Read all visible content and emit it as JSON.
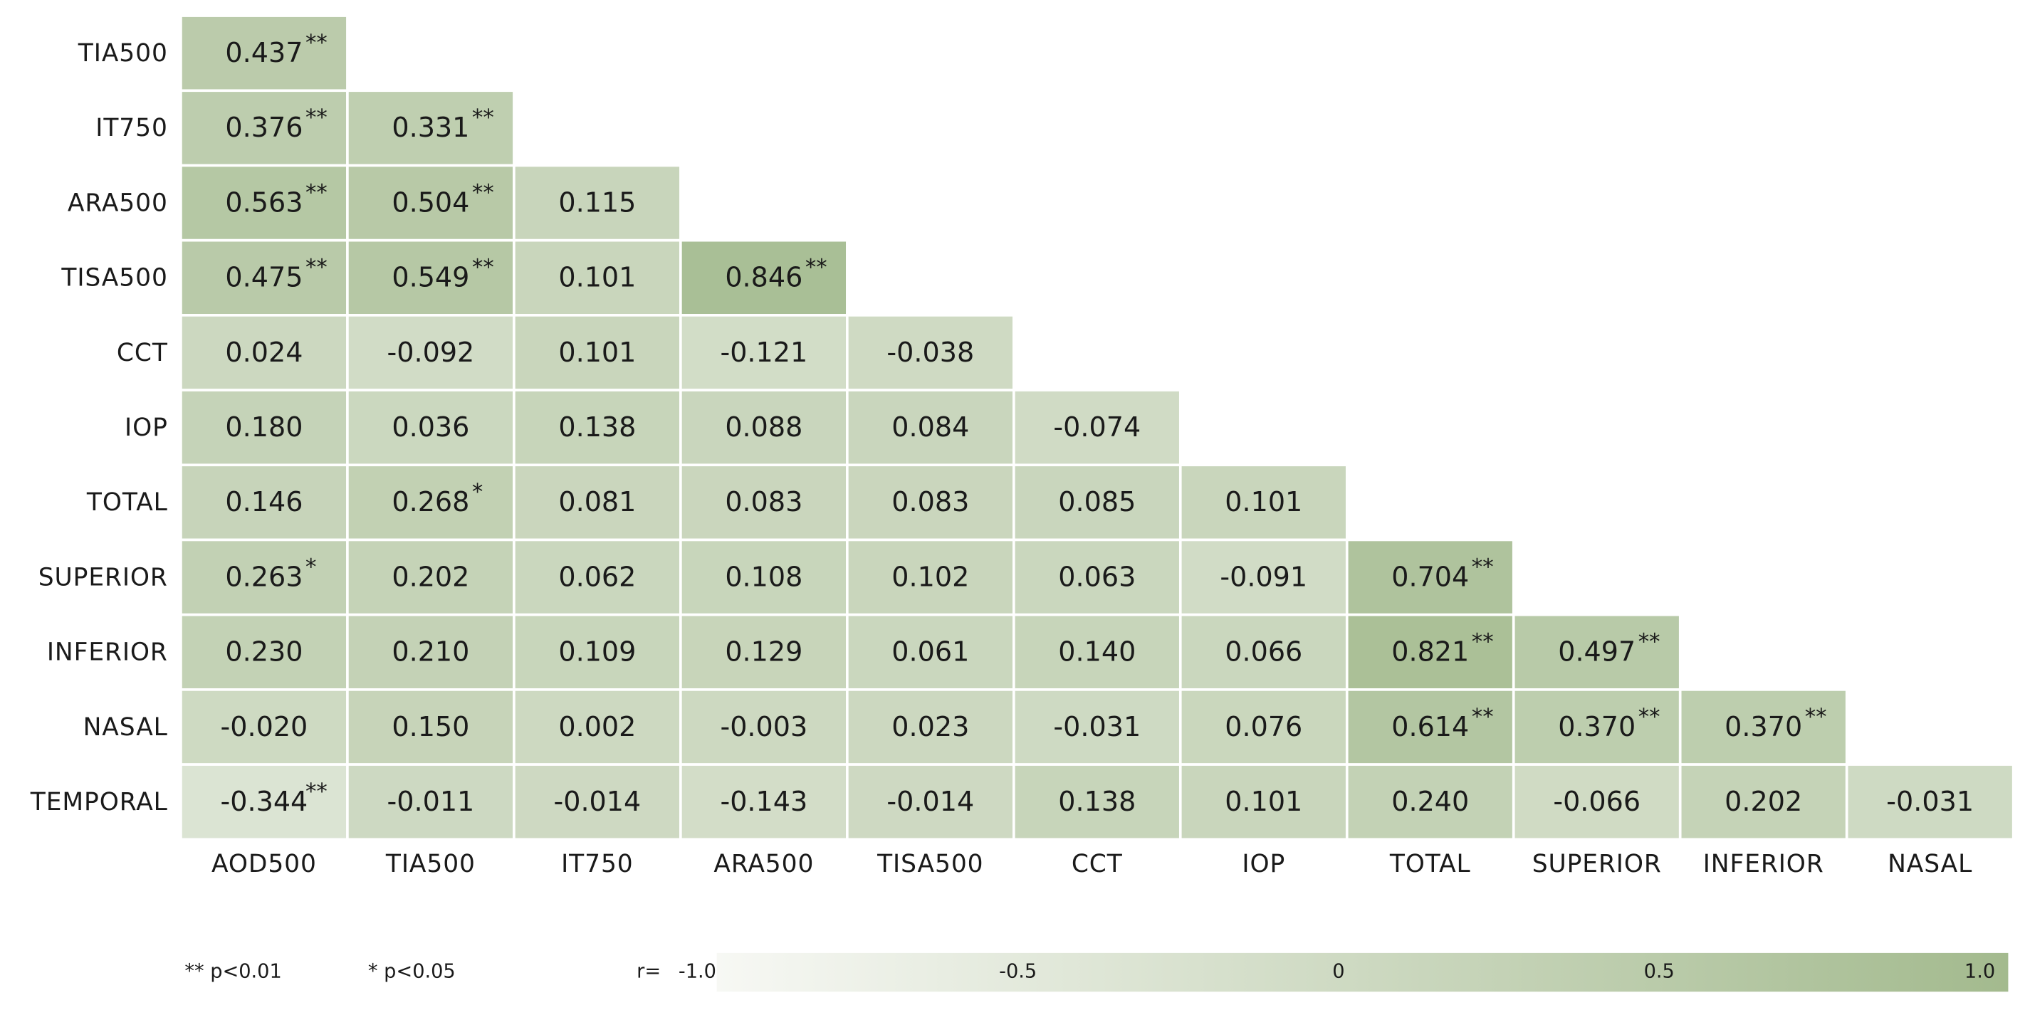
{
  "chart_data": {
    "type": "heatmap",
    "x_categories": [
      "AOD500",
      "TIA500",
      "IT750",
      "ARA500",
      "TISA500",
      "CCT",
      "IOP",
      "TOTAL",
      "SUPERIOR",
      "INFERIOR",
      "NASAL"
    ],
    "y_categories": [
      "TIA500",
      "IT750",
      "ARA500",
      "TISA500",
      "CCT",
      "IOP",
      "TOTAL",
      "SUPERIOR",
      "INFERIOR",
      "NASAL",
      "TEMPORAL"
    ],
    "values": [
      [
        0.437,
        null,
        null,
        null,
        null,
        null,
        null,
        null,
        null,
        null,
        null
      ],
      [
        0.376,
        0.331,
        null,
        null,
        null,
        null,
        null,
        null,
        null,
        null,
        null
      ],
      [
        0.563,
        0.504,
        0.115,
        null,
        null,
        null,
        null,
        null,
        null,
        null,
        null
      ],
      [
        0.475,
        0.549,
        0.101,
        0.846,
        null,
        null,
        null,
        null,
        null,
        null,
        null
      ],
      [
        0.024,
        -0.092,
        0.101,
        -0.121,
        -0.038,
        null,
        null,
        null,
        null,
        null,
        null
      ],
      [
        0.18,
        0.036,
        0.138,
        0.088,
        0.084,
        -0.074,
        null,
        null,
        null,
        null,
        null
      ],
      [
        0.146,
        0.268,
        0.081,
        0.083,
        0.083,
        0.085,
        0.101,
        null,
        null,
        null,
        null
      ],
      [
        0.263,
        0.202,
        0.062,
        0.108,
        0.102,
        0.063,
        -0.091,
        0.704,
        null,
        null,
        null
      ],
      [
        0.23,
        0.21,
        0.109,
        0.129,
        0.061,
        0.14,
        0.066,
        0.821,
        0.497,
        null,
        null
      ],
      [
        -0.02,
        0.15,
        0.002,
        -0.003,
        0.023,
        -0.031,
        0.076,
        0.614,
        0.37,
        0.37,
        null
      ],
      [
        -0.344,
        -0.011,
        -0.014,
        -0.143,
        -0.014,
        0.138,
        0.101,
        0.24,
        -0.066,
        0.202,
        -0.031
      ]
    ],
    "value_labels": [
      [
        "0.437",
        null,
        null,
        null,
        null,
        null,
        null,
        null,
        null,
        null,
        null
      ],
      [
        "0.376",
        "0.331",
        null,
        null,
        null,
        null,
        null,
        null,
        null,
        null,
        null
      ],
      [
        "0.563",
        "0.504",
        "0.115",
        null,
        null,
        null,
        null,
        null,
        null,
        null,
        null
      ],
      [
        "0.475",
        "0.549",
        "0.101",
        "0.846",
        null,
        null,
        null,
        null,
        null,
        null,
        null
      ],
      [
        "0.024",
        "-0.092",
        "0.101",
        "-0.121",
        "-0.038",
        null,
        null,
        null,
        null,
        null,
        null
      ],
      [
        "0.180",
        "0.036",
        "0.138",
        "0.088",
        "0.084",
        "-0.074",
        null,
        null,
        null,
        null,
        null
      ],
      [
        "0.146",
        "0.268",
        "0.081",
        "0.083",
        "0.083",
        "0.085",
        "0.101",
        null,
        null,
        null,
        null
      ],
      [
        "0.263",
        "0.202",
        "0.062",
        "0.108",
        "0.102",
        "0.063",
        "-0.091",
        "0.704",
        null,
        null,
        null
      ],
      [
        "0.230",
        "0.210",
        "0.109",
        "0.129",
        "0.061",
        "0.140",
        "0.066",
        "0.821",
        "0.497",
        null,
        null
      ],
      [
        "-0.020",
        "0.150",
        "0.002",
        "-0.003",
        "0.023",
        "-0.031",
        "0.076",
        "0.614",
        "0.370",
        "0.370",
        null
      ],
      [
        "-0.344",
        "-0.011",
        "-0.014",
        "-0.143",
        "-0.014",
        "0.138",
        "0.101",
        "0.240",
        "-0.066",
        "0.202",
        "-0.031"
      ]
    ],
    "significance": [
      [
        "**",
        null,
        null,
        null,
        null,
        null,
        null,
        null,
        null,
        null,
        null
      ],
      [
        "**",
        "**",
        null,
        null,
        null,
        null,
        null,
        null,
        null,
        null,
        null
      ],
      [
        "**",
        "**",
        null,
        null,
        null,
        null,
        null,
        null,
        null,
        null,
        null
      ],
      [
        "**",
        "**",
        null,
        "**",
        null,
        null,
        null,
        null,
        null,
        null,
        null
      ],
      [
        null,
        null,
        null,
        null,
        null,
        null,
        null,
        null,
        null,
        null,
        null
      ],
      [
        null,
        null,
        null,
        null,
        null,
        null,
        null,
        null,
        null,
        null,
        null
      ],
      [
        null,
        "*",
        null,
        null,
        null,
        null,
        null,
        null,
        null,
        null,
        null
      ],
      [
        "*",
        null,
        null,
        null,
        null,
        null,
        null,
        "**",
        null,
        null,
        null
      ],
      [
        null,
        null,
        null,
        null,
        null,
        null,
        null,
        "**",
        "**",
        null,
        null
      ],
      [
        null,
        null,
        null,
        null,
        null,
        null,
        null,
        "**",
        "**",
        "**",
        null
      ],
      [
        "**",
        null,
        null,
        null,
        null,
        null,
        null,
        null,
        null,
        null,
        null
      ]
    ],
    "notes": [
      "** p<0.01",
      "* p<0.05"
    ],
    "colorbar": {
      "label": "r=",
      "lim": [
        -1,
        1
      ],
      "ticks": [
        {
          "value": -1,
          "label": "-1.0"
        },
        -0.5,
        0,
        0.5,
        {
          "value": 1,
          "label": "1.0"
        }
      ],
      "colors": [
        "#f7f8f4",
        "#a3ba8e"
      ]
    }
  }
}
